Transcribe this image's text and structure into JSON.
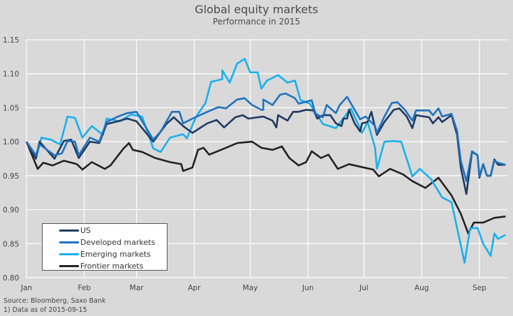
{
  "chart_data": {
    "type": "line",
    "title": "Global equity markets",
    "subtitle": "Performance in 2015",
    "xlabel": "",
    "ylabel": "",
    "x_unit": "day of year 2015 (0 = Jan 1)",
    "xlim": [
      0,
      258
    ],
    "ylim": [
      0.8,
      1.15
    ],
    "yticks": [
      "0.80",
      "0.85",
      "0.90",
      "0.95",
      "1.00",
      "1.05",
      "1.10",
      "1.15"
    ],
    "ytick_values": [
      0.8,
      0.85,
      0.9,
      0.95,
      1.0,
      1.05,
      1.1,
      1.15
    ],
    "xticks": [
      {
        "label": "Jan",
        "day": 0
      },
      {
        "label": "Feb",
        "day": 31
      },
      {
        "label": "Mar",
        "day": 59
      },
      {
        "label": "Apr",
        "day": 90
      },
      {
        "label": "May",
        "day": 120
      },
      {
        "label": "Jun",
        "day": 151
      },
      {
        "label": "Jul",
        "day": 181
      },
      {
        "label": "Aug",
        "day": 212
      },
      {
        "label": "Sep",
        "day": 243
      }
    ],
    "grid": true,
    "legend_position": "bottom-left",
    "series": [
      {
        "name": "US",
        "color": "#1f3a60",
        "points": [
          [
            0,
            1.0
          ],
          [
            5,
            0.975
          ],
          [
            7,
            1.0
          ],
          [
            15,
            0.975
          ],
          [
            20,
            1.001
          ],
          [
            24,
            1.003
          ],
          [
            28,
            0.976
          ],
          [
            34,
            1.0
          ],
          [
            39,
            0.998
          ],
          [
            43,
            1.026
          ],
          [
            49,
            1.03
          ],
          [
            54,
            1.034
          ],
          [
            59,
            1.03
          ],
          [
            68,
            1.0
          ],
          [
            75,
            1.026
          ],
          [
            79,
            1.036
          ],
          [
            84,
            1.023
          ],
          [
            89,
            1.013
          ],
          [
            97,
            1.027
          ],
          [
            102,
            1.032
          ],
          [
            106,
            1.021
          ],
          [
            112,
            1.036
          ],
          [
            116,
            1.039
          ],
          [
            119,
            1.034
          ],
          [
            127,
            1.037
          ],
          [
            132,
            1.031
          ],
          [
            134,
            1.021
          ],
          [
            127,
            1.037
          ],
          [
            135,
            1.039
          ],
          [
            140,
            1.031
          ],
          [
            143,
            1.044
          ],
          [
            140,
            1.031
          ],
          [
            146,
            1.044
          ],
          [
            150,
            1.047
          ],
          [
            154,
            1.046
          ],
          [
            156,
            1.034
          ],
          [
            159,
            1.039
          ],
          [
            163,
            1.039
          ],
          [
            169,
            1.023
          ],
          [
            172,
            1.034
          ],
          [
            166,
            1.027
          ],
          [
            176,
            1.027
          ],
          [
            170,
            1.034
          ],
          [
            180,
            1.027
          ],
          [
            185,
            1.044
          ],
          [
            173,
            1.047
          ],
          [
            179,
            1.015
          ],
          [
            183,
            1.029
          ],
          [
            187,
            1.021
          ],
          [
            188,
            1.01
          ],
          [
            192,
            1.029
          ],
          [
            197,
            1.047
          ],
          [
            200,
            1.049
          ],
          [
            204,
            1.037
          ],
          [
            207,
            1.02
          ],
          [
            209,
            1.039
          ],
          [
            216,
            1.036
          ],
          [
            218,
            1.027
          ],
          [
            221,
            1.036
          ],
          [
            223,
            1.029
          ],
          [
            228,
            1.039
          ],
          [
            231,
            1.01
          ],
          [
            233,
            0.962
          ],
          [
            236,
            0.923
          ],
          [
            239,
            0.985
          ],
          [
            242,
            0.98
          ],
          [
            243,
            0.947
          ],
          [
            245,
            0.967
          ],
          [
            247,
            0.95
          ],
          [
            249,
            0.95
          ],
          [
            251,
            0.974
          ],
          [
            253,
            0.966
          ],
          [
            257,
            0.966
          ]
        ]
      },
      {
        "name": "Developed markets",
        "color": "#1f72bf",
        "points": [
          [
            0,
            1.0
          ],
          [
            5,
            0.98
          ],
          [
            7,
            0.996
          ],
          [
            15,
            0.98
          ],
          [
            19,
            0.983
          ],
          [
            22,
            1.001
          ],
          [
            26,
            1.0
          ],
          [
            28,
            0.98
          ],
          [
            34,
            1.006
          ],
          [
            39,
            1.0
          ],
          [
            43,
            1.029
          ],
          [
            49,
            1.037
          ],
          [
            54,
            1.042
          ],
          [
            59,
            1.044
          ],
          [
            68,
            1.003
          ],
          [
            72,
            1.015
          ],
          [
            78,
            1.044
          ],
          [
            82,
            1.044
          ],
          [
            84,
            1.027
          ],
          [
            89,
            1.034
          ],
          [
            97,
            1.044
          ],
          [
            103,
            1.051
          ],
          [
            107,
            1.049
          ],
          [
            113,
            1.062
          ],
          [
            117,
            1.064
          ],
          [
            121,
            1.054
          ],
          [
            126,
            1.047
          ],
          [
            127,
            1.047
          ],
          [
            127,
            1.062
          ],
          [
            132,
            1.054
          ],
          [
            136,
            1.069
          ],
          [
            139,
            1.071
          ],
          [
            144,
            1.064
          ],
          [
            146,
            1.056
          ],
          [
            153,
            1.061
          ],
          [
            155,
            1.041
          ],
          [
            159,
            1.036
          ],
          [
            161,
            1.054
          ],
          [
            166,
            1.042
          ],
          [
            168,
            1.054
          ],
          [
            172,
            1.066
          ],
          [
            179,
            1.033
          ],
          [
            182,
            1.037
          ],
          [
            187,
            1.023
          ],
          [
            188,
            1.013
          ],
          [
            192,
            1.037
          ],
          [
            196,
            1.057
          ],
          [
            199,
            1.058
          ],
          [
            203,
            1.047
          ],
          [
            207,
            1.031
          ],
          [
            209,
            1.046
          ],
          [
            216,
            1.046
          ],
          [
            218,
            1.039
          ],
          [
            221,
            1.049
          ],
          [
            223,
            1.037
          ],
          [
            228,
            1.041
          ],
          [
            231,
            1.016
          ],
          [
            233,
            0.972
          ],
          [
            236,
            0.942
          ],
          [
            239,
            0.986
          ],
          [
            242,
            0.98
          ],
          [
            243,
            0.949
          ],
          [
            245,
            0.967
          ],
          [
            247,
            0.95
          ],
          [
            249,
            0.95
          ],
          [
            251,
            0.972
          ],
          [
            253,
            0.969
          ],
          [
            257,
            0.966
          ]
        ]
      },
      {
        "name": "Emerging markets",
        "color": "#18b0ee",
        "points": [
          [
            0,
            1.0
          ],
          [
            5,
            0.975
          ],
          [
            8,
            1.006
          ],
          [
            13,
            1.003
          ],
          [
            18,
            0.996
          ],
          [
            22,
            1.037
          ],
          [
            26,
            1.035
          ],
          [
            30,
            1.006
          ],
          [
            35,
            1.023
          ],
          [
            41,
            1.01
          ],
          [
            43,
            1.034
          ],
          [
            50,
            1.03
          ],
          [
            56,
            1.04
          ],
          [
            62,
            1.037
          ],
          [
            68,
            0.99
          ],
          [
            72,
            0.985
          ],
          [
            77,
            1.006
          ],
          [
            84,
            1.011
          ],
          [
            86,
            1.005
          ],
          [
            91,
            1.037
          ],
          [
            96,
            1.057
          ],
          [
            99,
            1.088
          ],
          [
            105,
            1.092
          ],
          [
            105,
            1.105
          ],
          [
            109,
            1.087
          ],
          [
            113,
            1.115
          ],
          [
            117,
            1.122
          ],
          [
            120,
            1.102
          ],
          [
            124,
            1.102
          ],
          [
            126,
            1.078
          ],
          [
            129,
            1.09
          ],
          [
            135,
            1.098
          ],
          [
            140,
            1.087
          ],
          [
            144,
            1.09
          ],
          [
            147,
            1.061
          ],
          [
            152,
            1.056
          ],
          [
            159,
            1.026
          ],
          [
            166,
            1.02
          ],
          [
            174,
            1.049
          ],
          [
            180,
            1.013
          ],
          [
            183,
            1.029
          ],
          [
            187,
            0.991
          ],
          [
            188,
            0.96
          ],
          [
            192,
            1.0
          ],
          [
            197,
            1.001
          ],
          [
            201,
            1.0
          ],
          [
            207,
            0.949
          ],
          [
            211,
            0.96
          ],
          [
            217,
            0.945
          ],
          [
            223,
            0.918
          ],
          [
            228,
            0.911
          ],
          [
            235,
            0.822
          ],
          [
            238,
            0.873
          ],
          [
            242,
            0.873
          ],
          [
            245,
            0.85
          ],
          [
            249,
            0.832
          ],
          [
            251,
            0.865
          ],
          [
            253,
            0.857
          ],
          [
            257,
            0.863
          ]
        ]
      },
      {
        "name": "Frontier markets",
        "color": "#222222",
        "points": [
          [
            0,
            1.0
          ],
          [
            6,
            0.96
          ],
          [
            9,
            0.969
          ],
          [
            14,
            0.965
          ],
          [
            20,
            0.972
          ],
          [
            27,
            0.967
          ],
          [
            30,
            0.959
          ],
          [
            35,
            0.97
          ],
          [
            42,
            0.96
          ],
          [
            45,
            0.965
          ],
          [
            52,
            0.99
          ],
          [
            55,
            0.998
          ],
          [
            57,
            0.988
          ],
          [
            62,
            0.985
          ],
          [
            69,
            0.976
          ],
          [
            77,
            0.97
          ],
          [
            83,
            0.967
          ],
          [
            84,
            0.957
          ],
          [
            89,
            0.962
          ],
          [
            92,
            0.988
          ],
          [
            95,
            0.991
          ],
          [
            98,
            0.981
          ],
          [
            107,
            0.991
          ],
          [
            113,
            0.998
          ],
          [
            121,
            1.0
          ],
          [
            126,
            0.991
          ],
          [
            132,
            0.988
          ],
          [
            137,
            0.993
          ],
          [
            141,
            0.976
          ],
          [
            146,
            0.965
          ],
          [
            150,
            0.97
          ],
          [
            153,
            0.986
          ],
          [
            158,
            0.976
          ],
          [
            162,
            0.981
          ],
          [
            167,
            0.96
          ],
          [
            173,
            0.967
          ],
          [
            181,
            0.962
          ],
          [
            186,
            0.959
          ],
          [
            189,
            0.949
          ],
          [
            195,
            0.96
          ],
          [
            202,
            0.952
          ],
          [
            207,
            0.942
          ],
          [
            214,
            0.932
          ],
          [
            221,
            0.947
          ],
          [
            228,
            0.921
          ],
          [
            233,
            0.894
          ],
          [
            237,
            0.865
          ],
          [
            240,
            0.881
          ],
          [
            245,
            0.881
          ],
          [
            251,
            0.888
          ],
          [
            257,
            0.89
          ]
        ]
      }
    ]
  },
  "footer": {
    "source": "Source: Bloomberg, Saxo Bank",
    "note": "1) Data as of 2015-09-15"
  }
}
